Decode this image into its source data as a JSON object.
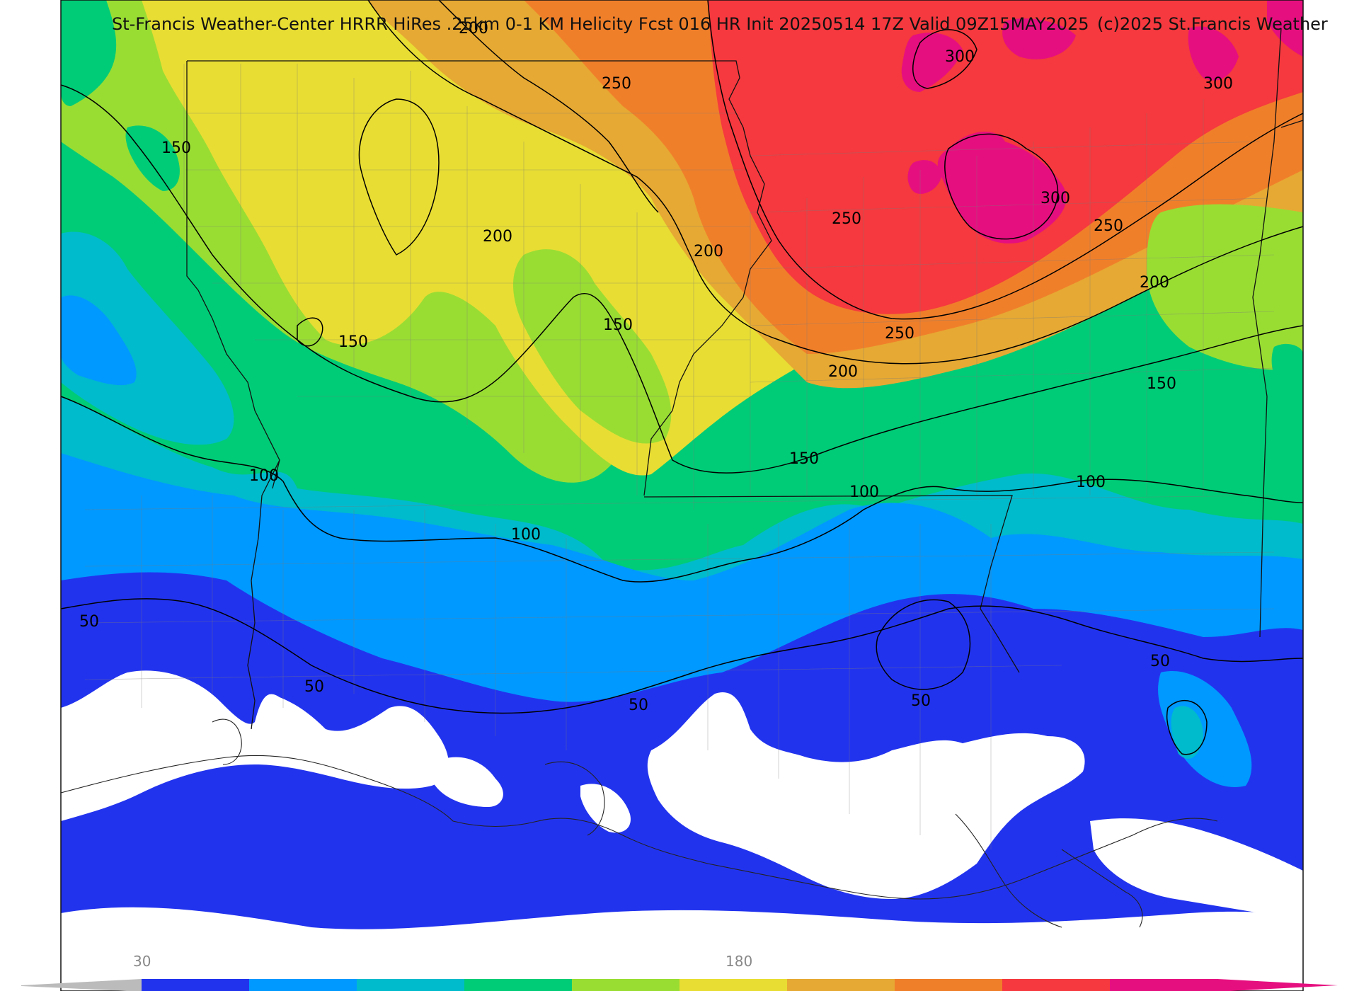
{
  "title": "St-Francis Weather-Center HRRR HiRes .25km 0-1 KM Helicity Fcst 016 HR Init 20250514 17Z  Valid 09Z15MAY2025",
  "copyright": "(c)2025 St.Francis Weather",
  "contour_labels": [
    "300",
    "300",
    "300",
    "250",
    "250",
    "250",
    "250",
    "200",
    "200",
    "200",
    "200",
    "200",
    "150",
    "150",
    "150",
    "150",
    "150",
    "100",
    "100",
    "100",
    "100",
    "50",
    "50",
    "50",
    "50",
    "50"
  ],
  "colorbar": {
    "labels": [
      "30",
      "180"
    ],
    "colors": [
      "#2233ee",
      "#0099ff",
      "#00bbcc",
      "#00cc77",
      "#99dd33",
      "#e8dd33",
      "#e6a933",
      "#f07f2a",
      "#f5393e",
      "#e60f7f"
    ]
  },
  "field_colors": {
    "lt30": "#ffffff",
    "c30_50": "#2233ee",
    "c50_75": "#0099ff",
    "c75_100": "#00bbcc",
    "c100_125": "#00cc77",
    "c125_150": "#99dd33",
    "c150_175": "#e8dd33",
    "c175_200": "#e6a933",
    "c200_250": "#f07f2a",
    "c250_300": "#f5393e",
    "gt300": "#e60f7f"
  }
}
